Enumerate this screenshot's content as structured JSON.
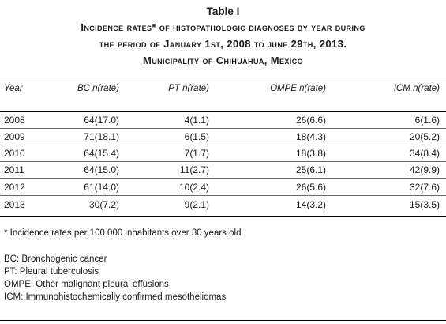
{
  "table_label": "Table I",
  "title_lines": [
    "Incidence rates* of histopathologic diagnoses by year during",
    "the period of January 1st, 2008 to june 29th, 2013.",
    "Municipality of Chihuahua, Mexico"
  ],
  "columns": [
    "Year",
    "BC n(rate)",
    "PT n(rate)",
    "OMPE n(rate)",
    "ICM n(rate)"
  ],
  "rows": [
    [
      "2008",
      "64(17.0)",
      "4(1.1)",
      "26(6.6)",
      "6(1.6)"
    ],
    [
      "2009",
      "71(18.1)",
      "6(1.5)",
      "18(4.3)",
      "20(5.2)"
    ],
    [
      "2010",
      "64(15.4)",
      "7(1.7)",
      "18(3.8)",
      "34(8.4)"
    ],
    [
      "2011",
      "64(15.0)",
      "11(2.7)",
      "25(6.1)",
      "42(9.9)"
    ],
    [
      "2012",
      "61(14.0)",
      "10(2.4)",
      "26(5.6)",
      "32(7.6)"
    ],
    [
      "2013",
      "30(7.2)",
      "9(2.1)",
      "14(3.2)",
      "15(3.5)"
    ]
  ],
  "footnote": "* Incidence rates per 100 000 inhabitants over 30 years old",
  "abbreviations": [
    "BC: Bronchogenic cancer",
    "PT: Pleural tuberculosis",
    "OMPE: Other malignant pleural effusions",
    "ICM: Immunohistochemically confirmed mesotheliomas"
  ]
}
